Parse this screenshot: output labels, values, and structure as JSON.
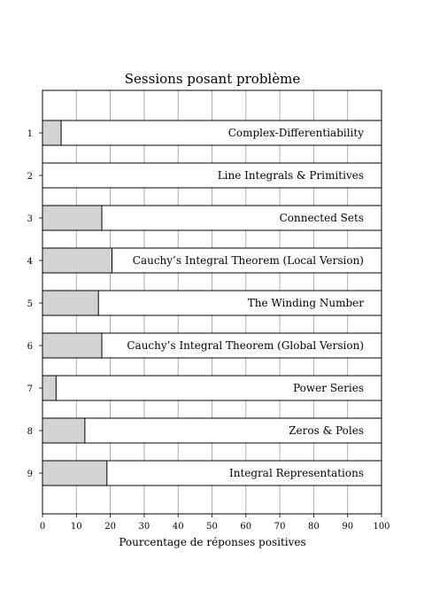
{
  "chart_data": {
    "type": "bar",
    "orientation": "horizontal",
    "title": "Sessions posant problème",
    "xlabel": "Pourcentage de réponses positives",
    "ylabel": "",
    "xlim": [
      0,
      100
    ],
    "xticks": [
      "0",
      "10",
      "20",
      "30",
      "40",
      "50",
      "60",
      "70",
      "80",
      "90",
      "100"
    ],
    "grid": "vertical",
    "categories": [
      "1",
      "2",
      "3",
      "4",
      "5",
      "6",
      "7",
      "8",
      "9"
    ],
    "labels": [
      "Complex-Differentiability",
      "Line Integrals & Primitives",
      "Connected Sets",
      "Cauchy’s Integral Theorem (Local Version)",
      "The Winding Number",
      "Cauchy’s Integral Theorem (Global Version)",
      "Power Series",
      "Zeros & Poles",
      "Integral Representations"
    ],
    "values": [
      5.5,
      0,
      17.5,
      20.5,
      16.5,
      17.5,
      4,
      12.5,
      19
    ],
    "bar_fill": "#d3d3d3",
    "bar_background": "#ffffff"
  }
}
